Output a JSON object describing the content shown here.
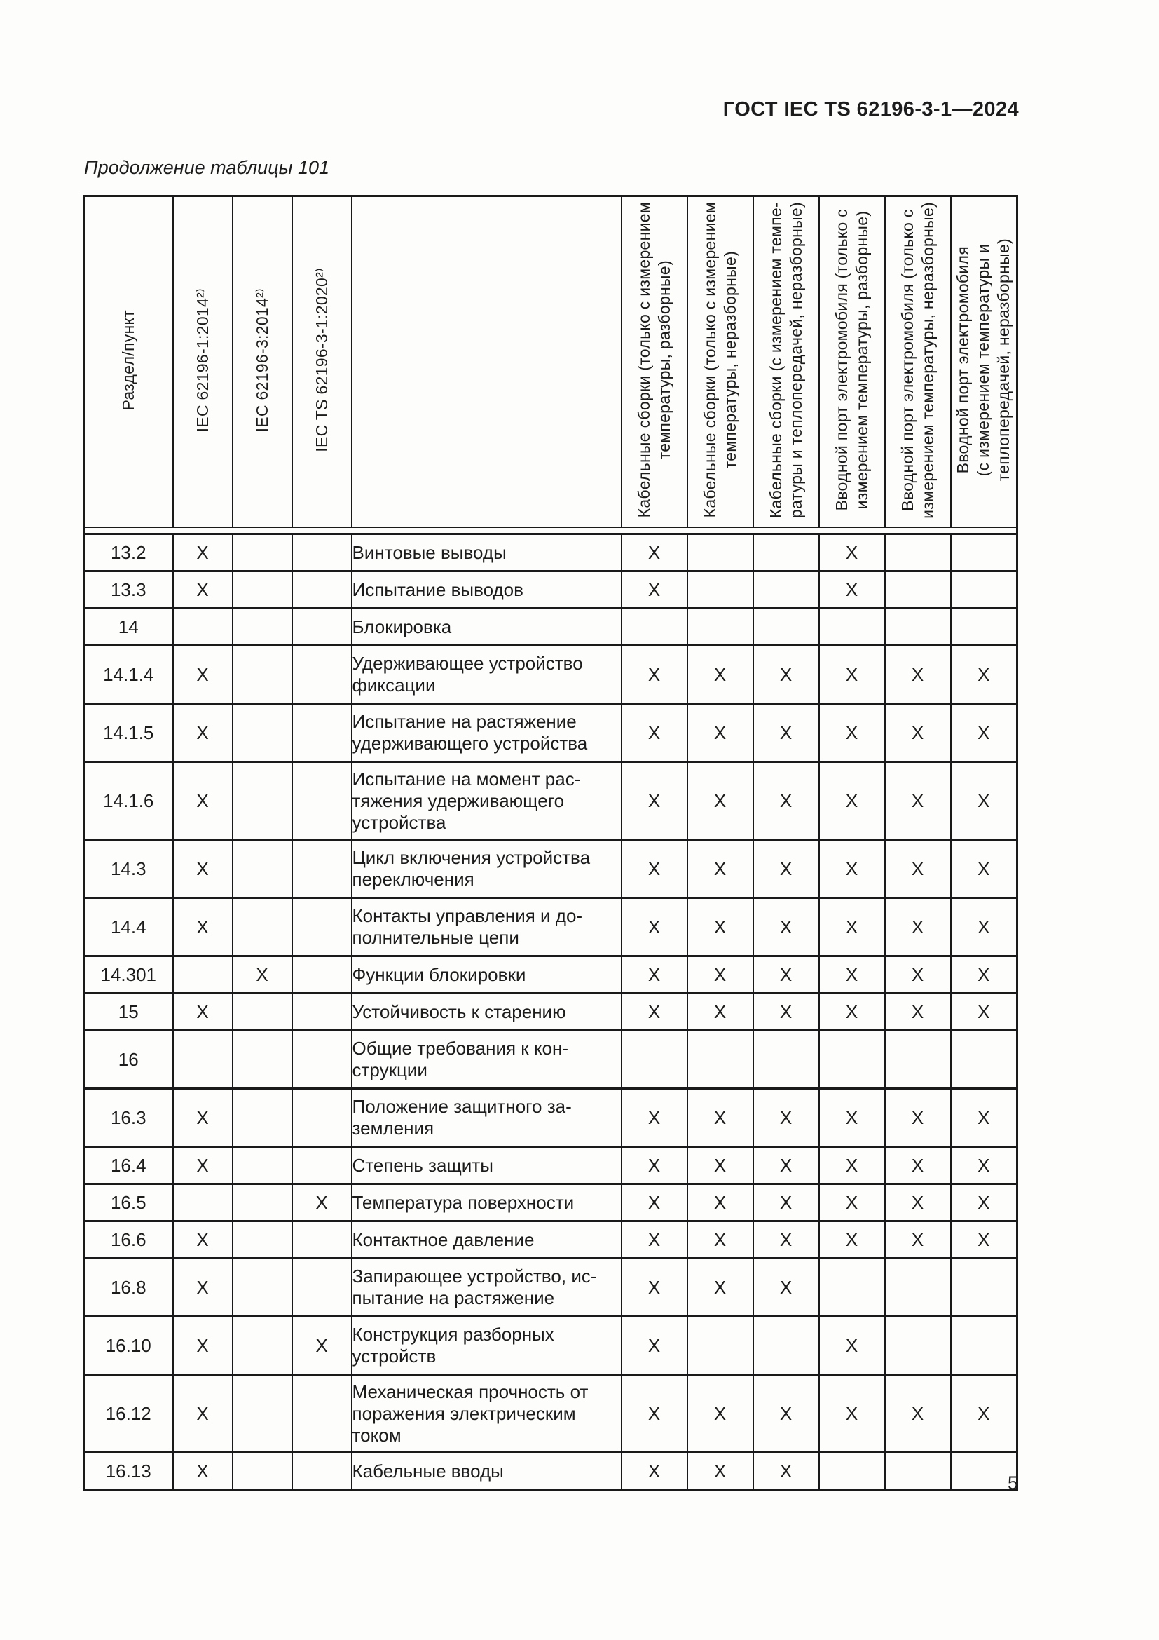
{
  "page": {
    "header_right": "ГОСТ IEC TS 62196-3-1—2024",
    "table_caption": "Продолжение таблицы 101",
    "page_number": "5"
  },
  "table": {
    "mark_symbol": "X",
    "columns": [
      "Раздел/пункт",
      "IEC 62196-1:2014²⁾",
      "IEC 62196-3:2014²⁾",
      "IEC TS 62196-3-1:2020²⁾",
      "",
      "Кабельные сборки (только с измерением\nтемпературы, разборные)",
      "Кабельные сборки (только с измерением\nтемпературы, неразборные)",
      "Кабельные сборки (с измерением темпе-\nратуры и теплопередачей, неразборные)",
      "Вводной порт электромобиля (только с\nизмерением температуры, разборные)",
      "Вводной порт электромобиля (только с\nизмерением температуры, неразборные)",
      "Вводной порт электромобиля\n(с измерением температуры и\nтеплопередачей, неразборные)"
    ],
    "rows": [
      {
        "section": "13.2",
        "iec1": "X",
        "iec3": "",
        "iects": "",
        "description": "Винтовые выводы",
        "marks": [
          "X",
          "",
          "",
          "X",
          "",
          ""
        ]
      },
      {
        "section": "13.3",
        "iec1": "X",
        "iec3": "",
        "iects": "",
        "description": "Испытание выводов",
        "marks": [
          "X",
          "",
          "",
          "X",
          "",
          ""
        ]
      },
      {
        "section": "14",
        "iec1": "",
        "iec3": "",
        "iects": "",
        "description": "Блокировка",
        "marks": [
          "",
          "",
          "",
          "",
          "",
          ""
        ]
      },
      {
        "section": "14.1.4",
        "iec1": "X",
        "iec3": "",
        "iects": "",
        "description": "Удерживающее устройство\nфиксации",
        "marks": [
          "X",
          "X",
          "X",
          "X",
          "X",
          "X"
        ]
      },
      {
        "section": "14.1.5",
        "iec1": "X",
        "iec3": "",
        "iects": "",
        "description": "Испытание на растяжение\nудерживающего устройства",
        "marks": [
          "X",
          "X",
          "X",
          "X",
          "X",
          "X"
        ]
      },
      {
        "section": "14.1.6",
        "iec1": "X",
        "iec3": "",
        "iects": "",
        "description": "Испытание на момент рас-\nтяжения удерживающего\nустройства",
        "marks": [
          "X",
          "X",
          "X",
          "X",
          "X",
          "X"
        ]
      },
      {
        "section": "14.3",
        "iec1": "X",
        "iec3": "",
        "iects": "",
        "description": "Цикл включения устройства\nпереключения",
        "marks": [
          "X",
          "X",
          "X",
          "X",
          "X",
          "X"
        ]
      },
      {
        "section": "14.4",
        "iec1": "X",
        "iec3": "",
        "iects": "",
        "description": "Контакты управления и до-\nполнительные цепи",
        "marks": [
          "X",
          "X",
          "X",
          "X",
          "X",
          "X"
        ]
      },
      {
        "section": "14.301",
        "iec1": "",
        "iec3": "X",
        "iects": "",
        "description": "Функции блокировки",
        "marks": [
          "X",
          "X",
          "X",
          "X",
          "X",
          "X"
        ]
      },
      {
        "section": "15",
        "iec1": "X",
        "iec3": "",
        "iects": "",
        "description": "Устойчивость к старению",
        "marks": [
          "X",
          "X",
          "X",
          "X",
          "X",
          "X"
        ]
      },
      {
        "section": "16",
        "iec1": "",
        "iec3": "",
        "iects": "",
        "description": "Общие требования к кон-\nструкции",
        "marks": [
          "",
          "",
          "",
          "",
          "",
          ""
        ]
      },
      {
        "section": "16.3",
        "iec1": "X",
        "iec3": "",
        "iects": "",
        "description": "Положение защитного за-\nземления",
        "marks": [
          "X",
          "X",
          "X",
          "X",
          "X",
          "X"
        ]
      },
      {
        "section": "16.4",
        "iec1": "X",
        "iec3": "",
        "iects": "",
        "description": "Степень защиты",
        "marks": [
          "X",
          "X",
          "X",
          "X",
          "X",
          "X"
        ]
      },
      {
        "section": "16.5",
        "iec1": "",
        "iec3": "",
        "iects": "X",
        "description": "Температура поверхности",
        "marks": [
          "X",
          "X",
          "X",
          "X",
          "X",
          "X"
        ]
      },
      {
        "section": "16.6",
        "iec1": "X",
        "iec3": "",
        "iects": "",
        "description": "Контактное давление",
        "marks": [
          "X",
          "X",
          "X",
          "X",
          "X",
          "X"
        ]
      },
      {
        "section": "16.8",
        "iec1": "X",
        "iec3": "",
        "iects": "",
        "description": "Запирающее устройство, ис-\nпытание на растяжение",
        "marks": [
          "X",
          "X",
          "X",
          "",
          "",
          ""
        ]
      },
      {
        "section": "16.10",
        "iec1": "X",
        "iec3": "",
        "iects": "X",
        "description": "Конструкция разборных\nустройств",
        "marks": [
          "X",
          "",
          "",
          "X",
          "",
          ""
        ]
      },
      {
        "section": "16.12",
        "iec1": "X",
        "iec3": "",
        "iects": "",
        "description": "Механическая прочность от\nпоражения электрическим\nтоком",
        "marks": [
          "X",
          "X",
          "X",
          "X",
          "X",
          "X"
        ]
      },
      {
        "section": "16.13",
        "iec1": "X",
        "iec3": "",
        "iects": "",
        "description": "Кабельные вводы",
        "marks": [
          "X",
          "X",
          "X",
          "",
          "",
          ""
        ]
      }
    ]
  }
}
